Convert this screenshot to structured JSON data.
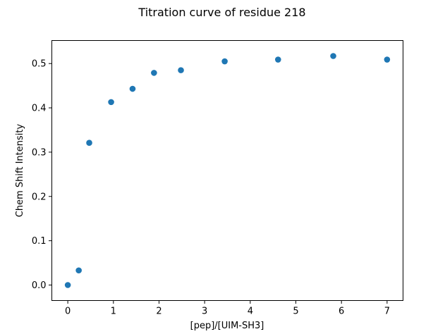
{
  "chart_data": {
    "type": "scatter",
    "title": "Titration curve of residue 218",
    "xlabel": "[pep]/[UIM-SH3]",
    "ylabel": "Chem Shift Intensity",
    "xlim": [
      -0.35,
      7.35
    ],
    "ylim": [
      -0.035,
      0.552
    ],
    "xticks": [
      0,
      1,
      2,
      3,
      4,
      5,
      6,
      7
    ],
    "xtick_labels": [
      "0",
      "1",
      "2",
      "3",
      "4",
      "5",
      "6",
      "7"
    ],
    "yticks": [
      0.0,
      0.1,
      0.2,
      0.3,
      0.4,
      0.5
    ],
    "ytick_labels": [
      "0.0",
      "0.1",
      "0.2",
      "0.3",
      "0.4",
      "0.5"
    ],
    "grid": false,
    "legend": "none",
    "marker_color": "#1f77b4",
    "series": [
      {
        "x": [
          0.0,
          0.24,
          0.47,
          0.95,
          1.42,
          1.89,
          2.48,
          3.44,
          4.61,
          5.82,
          7.0
        ],
        "y": [
          0.0,
          0.033,
          0.321,
          0.413,
          0.443,
          0.479,
          0.485,
          0.505,
          0.509,
          0.517,
          0.509
        ]
      }
    ]
  }
}
